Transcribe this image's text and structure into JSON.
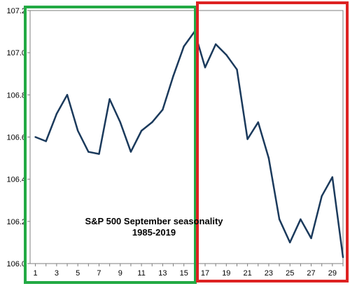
{
  "chart_data": {
    "type": "line",
    "title": "S&P 500 September seasonality",
    "subtitle": "1985-2019",
    "x": [
      1,
      2,
      3,
      4,
      5,
      6,
      7,
      8,
      9,
      10,
      11,
      12,
      13,
      14,
      15,
      16,
      17,
      18,
      19,
      20,
      21,
      22,
      23,
      24,
      25,
      26,
      27,
      28,
      29,
      30
    ],
    "x_tick_labels": [
      "1",
      "3",
      "5",
      "7",
      "9",
      "11",
      "13",
      "15",
      "17",
      "19",
      "21",
      "23",
      "25",
      "27",
      "29"
    ],
    "y_tick_labels": [
      "106.0",
      "106.2",
      "106.4",
      "106.6",
      "106.8",
      "107.0",
      "107.2"
    ],
    "xlim": [
      0.5,
      30
    ],
    "ylim": [
      106.0,
      107.2
    ],
    "grid": false,
    "series": [
      {
        "color": "#1b3a5c",
        "values": [
          106.6,
          106.58,
          106.71,
          106.8,
          106.63,
          106.53,
          106.52,
          106.78,
          106.67,
          106.53,
          106.63,
          106.67,
          106.73,
          106.89,
          107.03,
          107.1,
          106.93,
          107.04,
          106.99,
          106.92,
          106.59,
          106.67,
          106.5,
          106.21,
          106.1,
          106.21,
          106.12,
          106.32,
          106.41,
          106.03
        ]
      }
    ],
    "highlight_boxes": [
      {
        "x_from": 1,
        "x_to": 16,
        "color": "#22aa44"
      },
      {
        "x_from": 16,
        "x_to": 30,
        "color": "#dd2222"
      }
    ]
  }
}
